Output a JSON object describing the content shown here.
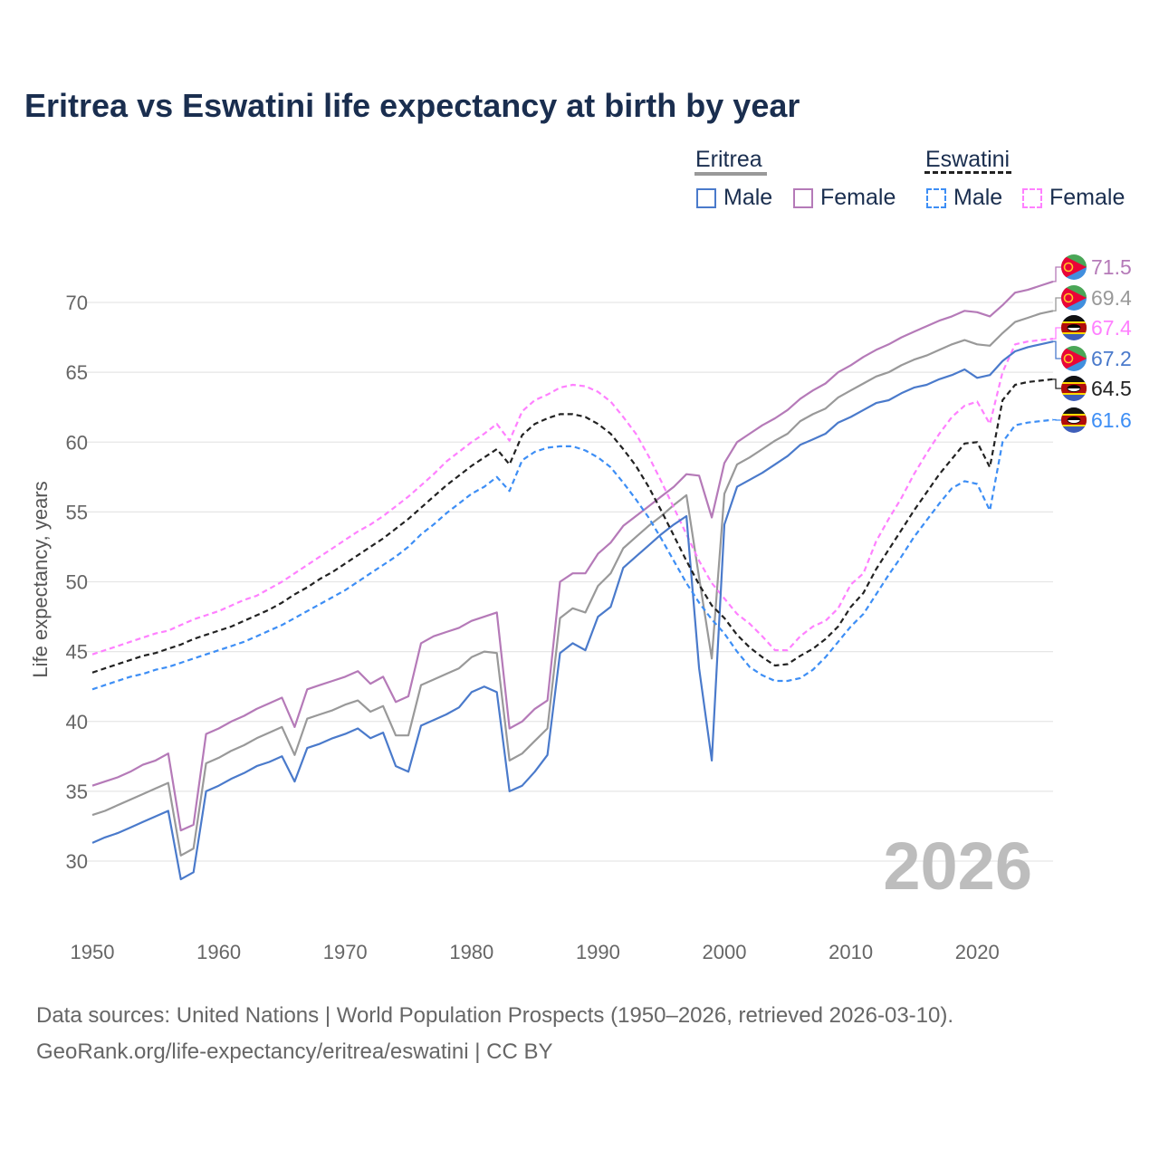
{
  "title": "Eritrea vs Eswatini life expectancy at birth by year",
  "legend": {
    "groups": [
      {
        "name": "Eritrea",
        "items": [
          "Male",
          "Female"
        ]
      },
      {
        "name": "Eswatini",
        "items": [
          "Male",
          "Female"
        ]
      }
    ]
  },
  "watermark": "2026",
  "footer": {
    "line1": "Data sources: United Nations | World Population Prospects (1950–2026, retrieved 2026-03-10).",
    "line2": "GeoRank.org/life-expectancy/eritrea/eswatini | CC BY"
  },
  "chart_data": {
    "type": "line",
    "title": "Eritrea vs Eswatini life expectancy at birth by year",
    "xlabel": "",
    "ylabel": "Life expectancy, years",
    "xlim": [
      1950,
      2026
    ],
    "ylim": [
      30,
      70
    ],
    "xticks": [
      1950,
      1960,
      1970,
      1980,
      1990,
      2000,
      2010,
      2020
    ],
    "yticks": [
      30,
      35,
      40,
      45,
      50,
      55,
      60,
      65,
      70
    ],
    "grid": true,
    "legend_position": "top-right",
    "x_start": 1950,
    "series": [
      {
        "name": "Eritrea Female",
        "country": "Eritrea",
        "color": "#b57ab8",
        "dashed": false,
        "end_label": "71.5",
        "values": [
          35.4,
          35.7,
          36.0,
          36.4,
          36.9,
          37.2,
          37.7,
          32.2,
          32.6,
          39.1,
          39.5,
          40.0,
          40.4,
          40.9,
          41.3,
          41.7,
          39.6,
          42.3,
          42.6,
          42.9,
          43.2,
          43.6,
          42.7,
          43.2,
          41.4,
          41.8,
          45.6,
          46.1,
          46.4,
          46.7,
          47.2,
          47.5,
          47.8,
          39.5,
          40.0,
          40.9,
          41.5,
          50.0,
          50.6,
          50.6,
          52.0,
          52.8,
          54.0,
          54.7,
          55.4,
          56.1,
          56.8,
          57.7,
          57.6,
          54.6,
          58.5,
          60.0,
          60.6,
          61.2,
          61.7,
          62.3,
          63.1,
          63.7,
          64.2,
          65.0,
          65.5,
          66.1,
          66.6,
          67.0,
          67.5,
          67.9,
          68.3,
          68.7,
          69.0,
          69.4,
          69.3,
          69.0,
          69.8,
          70.7,
          70.9,
          71.2,
          71.5
        ]
      },
      {
        "name": "Eritrea",
        "country": "Eritrea",
        "color": "#999999",
        "dashed": false,
        "end_label": "69.4",
        "values": [
          33.3,
          33.6,
          34.0,
          34.4,
          34.8,
          35.2,
          35.6,
          30.4,
          30.9,
          37.0,
          37.4,
          37.9,
          38.3,
          38.8,
          39.2,
          39.6,
          37.6,
          40.2,
          40.5,
          40.8,
          41.2,
          41.5,
          40.7,
          41.1,
          39.0,
          39.0,
          42.6,
          43.0,
          43.4,
          43.8,
          44.6,
          45.0,
          44.9,
          37.2,
          37.7,
          38.6,
          39.5,
          47.4,
          48.1,
          47.8,
          49.7,
          50.6,
          52.4,
          53.2,
          54.0,
          54.7,
          55.5,
          56.2,
          50.3,
          44.5,
          56.3,
          58.4,
          58.9,
          59.5,
          60.1,
          60.6,
          61.5,
          62.0,
          62.4,
          63.2,
          63.7,
          64.2,
          64.7,
          65.0,
          65.5,
          65.9,
          66.2,
          66.6,
          67.0,
          67.3,
          67.0,
          66.9,
          67.8,
          68.6,
          68.9,
          69.2,
          69.4
        ]
      },
      {
        "name": "Eswatini Female",
        "country": "Eswatini",
        "color": "#ff80ff",
        "dashed": true,
        "end_label": "67.4",
        "values": [
          44.8,
          45.1,
          45.4,
          45.7,
          46.0,
          46.3,
          46.5,
          46.9,
          47.3,
          47.6,
          47.9,
          48.3,
          48.7,
          49.0,
          49.5,
          50.0,
          50.6,
          51.2,
          51.8,
          52.4,
          53.0,
          53.6,
          54.1,
          54.7,
          55.4,
          56.1,
          56.9,
          57.7,
          58.6,
          59.3,
          60.0,
          60.6,
          61.3,
          60.1,
          62.2,
          63.0,
          63.4,
          63.9,
          64.1,
          64.0,
          63.6,
          62.9,
          61.8,
          60.6,
          59.0,
          57.2,
          55.3,
          53.4,
          51.5,
          49.9,
          48.8,
          47.7,
          47.0,
          46.1,
          45.1,
          45.1,
          46.1,
          46.8,
          47.2,
          48.1,
          49.8,
          50.6,
          52.9,
          54.5,
          56.0,
          57.7,
          59.2,
          60.6,
          61.8,
          62.6,
          62.9,
          61.3,
          65.0,
          67.0,
          67.2,
          67.3,
          67.4
        ]
      },
      {
        "name": "Eritrea Male",
        "country": "Eritrea",
        "color": "#4a7acb",
        "dashed": false,
        "end_label": "67.2",
        "values": [
          31.3,
          31.7,
          32.0,
          32.4,
          32.8,
          33.2,
          33.6,
          28.7,
          29.2,
          35.0,
          35.4,
          35.9,
          36.3,
          36.8,
          37.1,
          37.5,
          35.7,
          38.1,
          38.4,
          38.8,
          39.1,
          39.5,
          38.8,
          39.2,
          36.8,
          36.4,
          39.7,
          40.1,
          40.5,
          41.0,
          42.1,
          42.5,
          42.1,
          35.0,
          35.4,
          36.4,
          37.6,
          44.9,
          45.6,
          45.1,
          47.5,
          48.2,
          51.0,
          51.8,
          52.6,
          53.4,
          54.1,
          54.7,
          43.8,
          37.2,
          54.1,
          56.8,
          57.3,
          57.8,
          58.4,
          59.0,
          59.8,
          60.2,
          60.6,
          61.4,
          61.8,
          62.3,
          62.8,
          63.0,
          63.5,
          63.9,
          64.1,
          64.5,
          64.8,
          65.2,
          64.6,
          64.8,
          65.8,
          66.5,
          66.8,
          67.0,
          67.2
        ]
      },
      {
        "name": "Eswatini",
        "country": "Eswatini",
        "color": "#222222",
        "dashed": true,
        "end_label": "64.5",
        "values": [
          43.5,
          43.8,
          44.1,
          44.4,
          44.7,
          44.9,
          45.2,
          45.5,
          45.9,
          46.2,
          46.5,
          46.8,
          47.2,
          47.6,
          48.0,
          48.5,
          49.1,
          49.6,
          50.2,
          50.7,
          51.3,
          51.9,
          52.5,
          53.1,
          53.8,
          54.5,
          55.3,
          56.1,
          56.9,
          57.6,
          58.3,
          58.9,
          59.5,
          58.4,
          60.5,
          61.3,
          61.7,
          62.0,
          62.0,
          61.8,
          61.3,
          60.6,
          59.5,
          58.3,
          56.8,
          55.1,
          53.3,
          51.5,
          49.8,
          48.3,
          47.4,
          46.2,
          45.3,
          44.6,
          44.0,
          44.1,
          44.7,
          45.2,
          45.9,
          46.8,
          48.2,
          49.2,
          50.9,
          52.3,
          53.7,
          55.1,
          56.4,
          57.7,
          58.8,
          59.9,
          60.0,
          58.2,
          63.0,
          64.1,
          64.3,
          64.4,
          64.5
        ]
      },
      {
        "name": "Eswatini Male",
        "country": "Eswatini",
        "color": "#3d8ef5",
        "dashed": true,
        "end_label": "61.6",
        "values": [
          42.3,
          42.6,
          42.9,
          43.2,
          43.4,
          43.7,
          43.9,
          44.2,
          44.5,
          44.8,
          45.1,
          45.4,
          45.7,
          46.1,
          46.5,
          46.9,
          47.4,
          47.9,
          48.4,
          48.9,
          49.4,
          50.0,
          50.6,
          51.2,
          51.8,
          52.5,
          53.4,
          54.1,
          54.9,
          55.6,
          56.3,
          56.8,
          57.5,
          56.5,
          58.7,
          59.3,
          59.6,
          59.7,
          59.7,
          59.4,
          58.9,
          58.2,
          57.1,
          55.9,
          54.6,
          53.1,
          51.5,
          49.9,
          48.5,
          47.3,
          46.3,
          45.0,
          43.9,
          43.3,
          42.9,
          42.9,
          43.1,
          43.7,
          44.6,
          45.7,
          46.8,
          47.7,
          49.1,
          50.5,
          51.8,
          53.2,
          54.4,
          55.6,
          56.7,
          57.2,
          57.0,
          55.1,
          60.0,
          61.2,
          61.4,
          61.5,
          61.6
        ]
      }
    ]
  }
}
